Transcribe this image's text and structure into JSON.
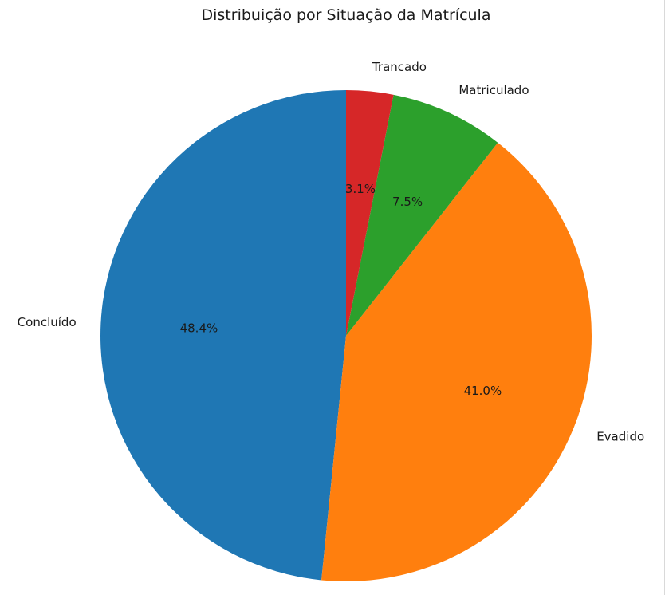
{
  "chart_data": {
    "type": "pie",
    "title": "Distribuição por Situação da Matrícula",
    "categories": [
      "Concluído",
      "Evadido",
      "Matriculado",
      "Trancado"
    ],
    "values": [
      48.4,
      41.0,
      7.5,
      3.1
    ],
    "labels_pct": [
      "48.4%",
      "41.0%",
      "7.5%",
      "3.1%"
    ],
    "colors": [
      "#1f77b4",
      "#ff7f0e",
      "#2ca02c",
      "#d62728"
    ],
    "start_angle_deg": 90,
    "direction": "counterclockwise",
    "legend": "none"
  }
}
